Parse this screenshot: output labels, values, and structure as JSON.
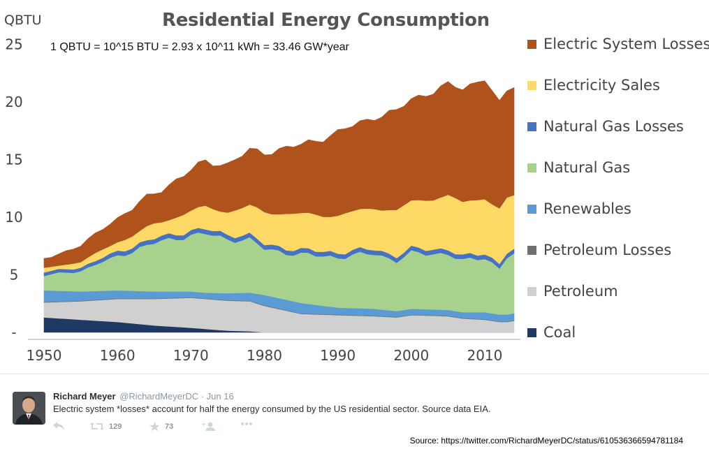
{
  "chart_data": {
    "type": "area",
    "stacked": true,
    "title": "Residential Energy Consumption",
    "ylabel": "QBTU",
    "annotation": "1 QBTU = 10^15 BTU = 2.93 x 10^11 kWh = 33.46 GW*year",
    "x_start": 1950,
    "x_end": 2014,
    "xlim": [
      1950,
      2016
    ],
    "ylim": [
      0,
      25
    ],
    "x_ticks": [
      "1950",
      "1960",
      "1970",
      "1980",
      "1990",
      "2000",
      "2010"
    ],
    "y_ticks": [
      "-",
      "5",
      "10",
      "15",
      "20",
      "25"
    ],
    "grid": false,
    "legend_position": "right",
    "cumulative_keys": [
      1950,
      1955,
      1960,
      1965,
      1970,
      1972,
      1975,
      1978,
      1980,
      1985,
      1990,
      1995,
      1998,
      2000,
      2005,
      2007,
      2010,
      2012,
      2013,
      2014
    ],
    "cumulative_note_series_order": [
      "Coal",
      "Petroleum",
      "Petroleum Losses",
      "Renewables",
      "Natural Gas",
      "Natural Gas Losses",
      "Electricity Sales",
      "Electric System Losses"
    ],
    "series": [
      {
        "name": "Coal",
        "color": "#1f3864",
        "values": [
          1.3,
          1.1,
          0.9,
          0.6,
          0.4,
          0.3,
          0.15,
          0.1,
          0,
          0,
          0,
          0,
          0,
          0,
          0,
          0,
          0,
          0,
          0,
          0
        ]
      },
      {
        "name": "Petroleum",
        "color": "#d0d0d0",
        "values": [
          1.3,
          1.6,
          2.0,
          2.3,
          2.6,
          2.6,
          2.6,
          2.6,
          2.3,
          1.6,
          1.5,
          1.4,
          1.3,
          1.5,
          1.4,
          1.2,
          1.1,
          0.9,
          0.9,
          1.0
        ]
      },
      {
        "name": "Petroleum Losses",
        "color": "#707070",
        "values": [
          0.05,
          0.05,
          0.05,
          0.05,
          0.05,
          0.05,
          0.05,
          0.05,
          0.05,
          0.05,
          0.05,
          0.05,
          0.05,
          0.05,
          0.05,
          0.05,
          0.05,
          0.05,
          0.05,
          0.05
        ]
      },
      {
        "name": "Renewables",
        "color": "#5b9bd5",
        "values": [
          1.0,
          0.8,
          0.7,
          0.6,
          0.5,
          0.5,
          0.6,
          0.7,
          0.9,
          0.9,
          0.6,
          0.6,
          0.5,
          0.5,
          0.5,
          0.5,
          0.6,
          0.6,
          0.6,
          0.6
        ]
      },
      {
        "name": "Natural Gas",
        "color": "#a9d18e",
        "values": [
          1.3,
          1.8,
          3.0,
          4.2,
          4.9,
          5.1,
          4.7,
          4.6,
          4.0,
          4.2,
          4.4,
          4.8,
          4.4,
          4.8,
          4.9,
          4.4,
          4.8,
          4.0,
          5.0,
          5.1
        ]
      },
      {
        "name": "Natural Gas Losses",
        "color": "#4472c4",
        "values": [
          0.3,
          0.3,
          0.4,
          0.4,
          0.4,
          0.4,
          0.4,
          0.4,
          0.4,
          0.4,
          0.4,
          0.4,
          0.4,
          0.4,
          0.4,
          0.4,
          0.4,
          0.4,
          0.4,
          0.4
        ]
      },
      {
        "name": "Electricity Sales",
        "color": "#ffd966",
        "values": [
          0.3,
          0.5,
          0.8,
          1.2,
          1.7,
          1.9,
          2.0,
          2.5,
          2.8,
          3.1,
          3.2,
          3.6,
          3.9,
          4.1,
          4.6,
          4.7,
          4.8,
          4.7,
          4.6,
          4.7
        ]
      },
      {
        "name": "Electric System Losses",
        "color": "#b0521c",
        "values": [
          0.8,
          1.4,
          2.1,
          2.7,
          3.5,
          4.0,
          4.1,
          4.8,
          5.2,
          6.0,
          7.2,
          7.9,
          8.6,
          8.9,
          9.6,
          9.9,
          10.4,
          9.1,
          9.3,
          9.6
        ]
      }
    ],
    "legend_order": [
      "Electric System Losses",
      "Electricity Sales",
      "Natural Gas Losses",
      "Natural Gas",
      "Renewables",
      "Petroleum Losses",
      "Petroleum",
      "Coal"
    ]
  },
  "tweet": {
    "author_name": "Richard Meyer",
    "author_handle": "@RichardMeyerDC",
    "date": "· Jun 16",
    "text": "Electric system *losses* account for half the energy consumed by the US residential sector. Source data EIA.",
    "retweet_count": "129",
    "favorite_count": "73",
    "icons": [
      "reply-icon",
      "retweet-icon",
      "favorite-icon",
      "follow-icon",
      "more-icon"
    ]
  },
  "source_line": "Source: https://twitter.com/RichardMeyerDC/status/610536366594781184"
}
